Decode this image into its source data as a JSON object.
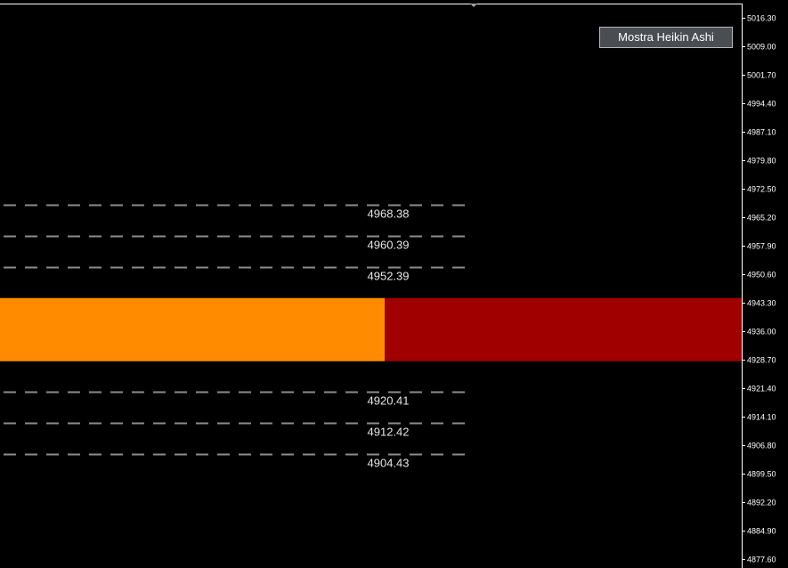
{
  "toolbar": {
    "heikin_ashi_button": "Mostra Heikin Ashi"
  },
  "colors": {
    "background": "#000000",
    "bull_zone": "#ff8c00",
    "bear_zone": "#a00000",
    "level_line": "#8c8c8c",
    "axis": "#ffffff"
  },
  "price_axis": [
    "5016.30",
    "5009.00",
    "5001.70",
    "4994.40",
    "4987.10",
    "4979.80",
    "4972.50",
    "4965.20",
    "4957.90",
    "4950.60",
    "4943.30",
    "4936.00",
    "4928.70",
    "4921.40",
    "4914.10",
    "4906.80",
    "4899.50",
    "4892.20",
    "4884.90",
    "4877.60"
  ],
  "levels": [
    "4968.38",
    "4960.39",
    "4952.39",
    "4920.41",
    "4912.42",
    "4904.43"
  ],
  "zone": {
    "top": 4944.5,
    "bottom": 4928.3
  }
}
